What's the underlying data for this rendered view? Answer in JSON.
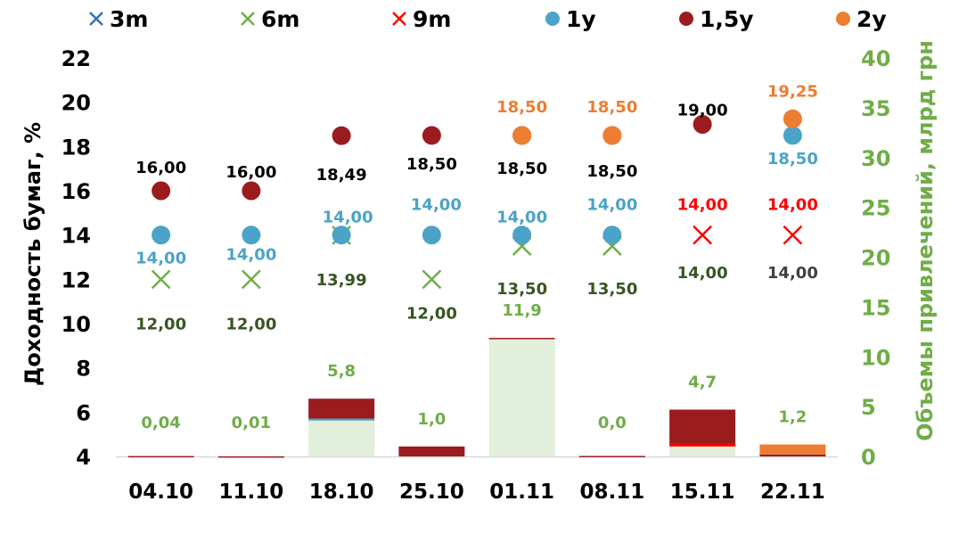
{
  "chart_data": {
    "type": "bar",
    "categories": [
      "04.10",
      "11.10",
      "18.10",
      "25.10",
      "01.11",
      "08.11",
      "15.11",
      "22.11"
    ],
    "ylabel": "Доходность бумаг, %",
    "y2label": "Объемы привлечений, млрд грн",
    "ylim": [
      4,
      22
    ],
    "yticks": [
      "22",
      "20",
      "18",
      "16",
      "14",
      "12",
      "10",
      "8",
      "6",
      "4"
    ],
    "y2lim": [
      0,
      40
    ],
    "y2ticks": [
      "40",
      "35",
      "30",
      "25",
      "20",
      "15",
      "10",
      "5",
      "0"
    ],
    "legend_position": "top",
    "colors": {
      "3m": "#2e75b6",
      "6m": "#70ad47",
      "9m": "#ff0000",
      "1y": "#4ba3c7",
      "1_5y": "#9b1c1f",
      "2y": "#ed7d31",
      "bar_6m": "#e2efda"
    },
    "legend": [
      {
        "key": "3m",
        "label": "3m",
        "marker": "x",
        "color": "#2e75b6"
      },
      {
        "key": "6m",
        "label": "6m",
        "marker": "x",
        "color": "#70ad47"
      },
      {
        "key": "9m",
        "label": "9m",
        "marker": "x",
        "color": "#ff0000"
      },
      {
        "key": "1y",
        "label": "1y",
        "marker": "dot",
        "color": "#4ba3c7"
      },
      {
        "key": "1_5y",
        "label": "1,5y",
        "marker": "dot",
        "color": "#9b1c1f"
      },
      {
        "key": "2y",
        "label": "2y",
        "marker": "dot",
        "color": "#ed7d31"
      }
    ],
    "yield_series": [
      {
        "key": "6m",
        "marker": "x",
        "color": "#70ad47",
        "values": [
          12.0,
          12.0,
          13.99,
          12.0,
          13.5,
          13.5,
          null,
          null
        ],
        "labels": [
          "12,00",
          "12,00",
          "13,99",
          "12,00",
          "13,50",
          "13,50",
          null,
          null
        ],
        "label_color": "#375623"
      },
      {
        "key": "9m",
        "marker": "x",
        "color": "#ff0000",
        "values": [
          null,
          null,
          null,
          null,
          null,
          null,
          14.0,
          14.0
        ],
        "labels": [
          null,
          null,
          null,
          null,
          null,
          null,
          "14,00",
          "14,00"
        ],
        "label_color": "#ff0000"
      },
      {
        "key": "1y",
        "marker": "dot",
        "color": "#4ba3c7",
        "values": [
          14.0,
          14.0,
          14.0,
          14.0,
          14.0,
          14.0,
          null,
          18.5
        ],
        "labels": [
          "14,00",
          "14,00",
          "14,00",
          "14,00",
          "14,00",
          "14,00",
          null,
          "18,50"
        ],
        "label_color": "#4ba3c7"
      },
      {
        "key": "1_5y",
        "marker": "dot",
        "color": "#9b1c1f",
        "values": [
          16.0,
          16.0,
          18.49,
          18.5,
          18.5,
          18.5,
          19.0,
          null
        ],
        "labels": [
          "16,00",
          "16,00",
          "18,49",
          "18,50",
          "18,50",
          "18,50",
          "19,00",
          null
        ],
        "label_color": "#000000"
      },
      {
        "key": "2y",
        "marker": "dot",
        "color": "#ed7d31",
        "values": [
          null,
          null,
          null,
          null,
          18.5,
          18.5,
          null,
          19.25
        ],
        "labels": [
          null,
          null,
          null,
          null,
          "18,50",
          "18,50",
          null,
          "19,25"
        ],
        "label_color": "#ed7d31"
      }
    ],
    "extra_labels": [
      {
        "category": "15.11",
        "text": "14,00",
        "color": "#375623"
      },
      {
        "category": "22.11",
        "text": "14,00",
        "color": "#404040"
      }
    ],
    "volume_bars": [
      {
        "category": "04.10",
        "segments": {
          "6m": 0.02,
          "1_5y": 0.02
        }
      },
      {
        "category": "11.10",
        "segments": {
          "6m": 0.005,
          "1_5y": 0.005
        }
      },
      {
        "category": "18.10",
        "segments": {
          "6m": 3.6,
          "1y": 0.2,
          "1_5y": 2.0
        }
      },
      {
        "category": "25.10",
        "segments": {
          "1_5y": 1.0
        }
      },
      {
        "category": "01.11",
        "segments": {
          "6m": 11.8,
          "1_5y": 0.1
        }
      },
      {
        "category": "08.11",
        "segments": {
          "1_5y": 0.05
        }
      },
      {
        "category": "15.11",
        "segments": {
          "6m": 1.0,
          "9m": 0.3,
          "1_5y": 3.4
        }
      },
      {
        "category": "22.11",
        "segments": {
          "1_5y": 0.2,
          "2y": 1.0
        }
      }
    ],
    "volume_labels": [
      "0,04",
      "0,01",
      "5,8",
      "1,0",
      "11,9",
      "0,0",
      "4,7",
      "1,2"
    ],
    "volume_label_color": "#70ad47"
  }
}
